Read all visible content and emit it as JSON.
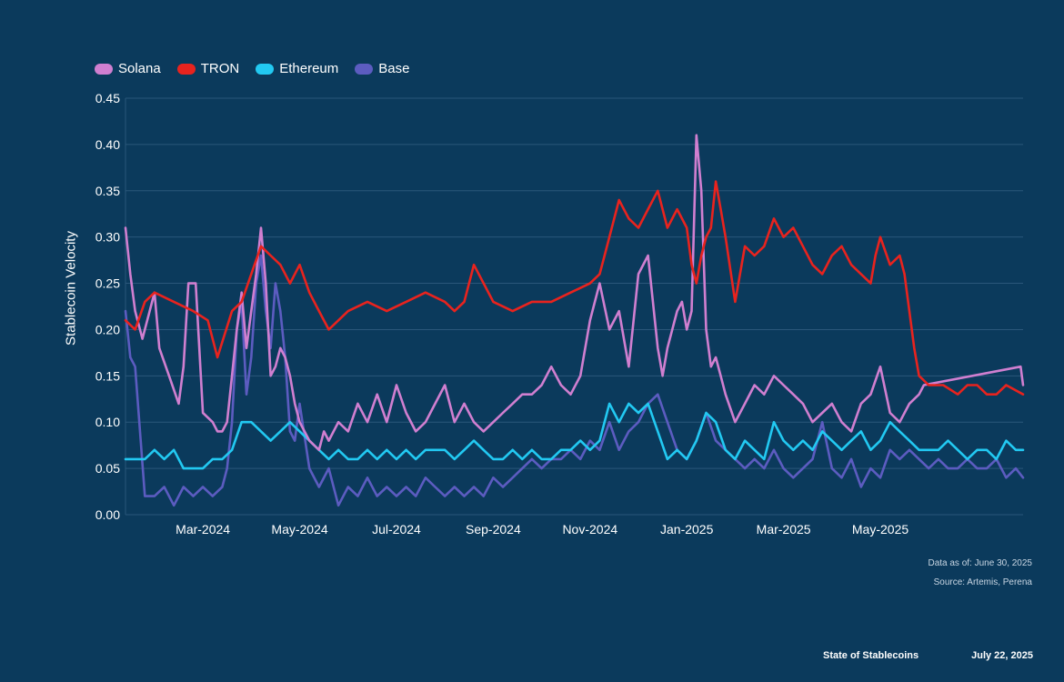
{
  "chart_data": {
    "type": "line",
    "title": "",
    "xlabel": "",
    "ylabel": "Stablecoin Velocity",
    "ylim": [
      0,
      0.45
    ],
    "yticks": [
      "0.00",
      "0.05",
      "0.10",
      "0.15",
      "0.20",
      "0.25",
      "0.30",
      "0.35",
      "0.40",
      "0.45"
    ],
    "xlim_month_index": [
      -0.6,
      17.95
    ],
    "xtick_labels": [
      "Mar-2024",
      "May-2024",
      "Jul-2024",
      "Sep-2024",
      "Nov-2024",
      "Jan-2025",
      "Mar-2025",
      "May-2025"
    ],
    "xtick_month_index": [
      1,
      3,
      5,
      7,
      9,
      11,
      13,
      15
    ],
    "legend_placement": "top-left",
    "series": [
      {
        "name": "Solana",
        "color": "#d07fd0",
        "x": [
          -0.6,
          -0.5,
          -0.4,
          -0.25,
          -0.1,
          0.0,
          0.1,
          0.3,
          0.5,
          0.6,
          0.7,
          0.85,
          1.0,
          1.2,
          1.3,
          1.4,
          1.5,
          1.6,
          1.7,
          1.8,
          1.9,
          2.0,
          2.1,
          2.2,
          2.3,
          2.4,
          2.5,
          2.6,
          2.7,
          2.8,
          2.9,
          3.0,
          3.2,
          3.4,
          3.5,
          3.6,
          3.8,
          4.0,
          4.2,
          4.4,
          4.6,
          4.8,
          5.0,
          5.2,
          5.4,
          5.6,
          5.8,
          6.0,
          6.2,
          6.4,
          6.6,
          6.8,
          7.0,
          7.2,
          7.4,
          7.6,
          7.8,
          8.0,
          8.2,
          8.4,
          8.6,
          8.8,
          9.0,
          9.2,
          9.4,
          9.6,
          9.8,
          10.0,
          10.2,
          10.4,
          10.5,
          10.6,
          10.8,
          10.9,
          11.0,
          11.1,
          11.2,
          11.3,
          11.4,
          11.5,
          11.6,
          11.7,
          11.8,
          12.0,
          12.2,
          12.4,
          12.6,
          12.8,
          13.0,
          13.2,
          13.4,
          13.6,
          13.8,
          14.0,
          14.2,
          14.4,
          14.6,
          14.8,
          15.0,
          15.2,
          15.4,
          15.6,
          15.8,
          15.9,
          17.9,
          17.95
        ],
        "values": [
          0.31,
          0.26,
          0.22,
          0.19,
          0.22,
          0.24,
          0.18,
          0.15,
          0.12,
          0.16,
          0.25,
          0.25,
          0.11,
          0.1,
          0.09,
          0.09,
          0.1,
          0.15,
          0.2,
          0.24,
          0.18,
          0.22,
          0.26,
          0.31,
          0.25,
          0.15,
          0.16,
          0.18,
          0.17,
          0.15,
          0.12,
          0.1,
          0.08,
          0.07,
          0.09,
          0.08,
          0.1,
          0.09,
          0.12,
          0.1,
          0.13,
          0.1,
          0.14,
          0.11,
          0.09,
          0.1,
          0.12,
          0.14,
          0.1,
          0.12,
          0.1,
          0.09,
          0.1,
          0.11,
          0.12,
          0.13,
          0.13,
          0.14,
          0.16,
          0.14,
          0.13,
          0.15,
          0.21,
          0.25,
          0.2,
          0.22,
          0.16,
          0.26,
          0.28,
          0.18,
          0.15,
          0.18,
          0.22,
          0.23,
          0.2,
          0.22,
          0.41,
          0.35,
          0.2,
          0.16,
          0.17,
          0.15,
          0.13,
          0.1,
          0.12,
          0.14,
          0.13,
          0.15,
          0.14,
          0.13,
          0.12,
          0.1,
          0.11,
          0.12,
          0.1,
          0.09,
          0.12,
          0.13,
          0.16,
          0.11,
          0.1,
          0.12,
          0.13,
          0.14,
          0.16,
          0.14
        ]
      },
      {
        "name": "TRON",
        "color": "#e8231e",
        "x": [
          -0.6,
          -0.4,
          -0.2,
          0.0,
          0.4,
          0.8,
          1.1,
          1.3,
          1.6,
          1.8,
          2.0,
          2.2,
          2.4,
          2.6,
          2.8,
          3.0,
          3.2,
          3.4,
          3.6,
          3.8,
          4.0,
          4.4,
          4.8,
          5.2,
          5.6,
          6.0,
          6.2,
          6.4,
          6.6,
          7.0,
          7.4,
          7.8,
          8.2,
          8.6,
          9.0,
          9.2,
          9.3,
          9.4,
          9.6,
          9.8,
          10.0,
          10.2,
          10.4,
          10.6,
          10.8,
          11.0,
          11.1,
          11.2,
          11.3,
          11.4,
          11.5,
          11.6,
          11.7,
          11.8,
          12.0,
          12.2,
          12.4,
          12.6,
          12.8,
          13.0,
          13.2,
          13.4,
          13.6,
          13.8,
          14.0,
          14.2,
          14.4,
          14.6,
          14.8,
          14.9,
          15.0,
          15.2,
          15.4,
          15.5,
          15.7,
          15.8,
          16.0,
          16.3,
          16.6,
          16.8,
          17.0,
          17.2,
          17.4,
          17.6,
          17.95
        ],
        "values": [
          0.21,
          0.2,
          0.23,
          0.24,
          0.23,
          0.22,
          0.21,
          0.17,
          0.22,
          0.23,
          0.26,
          0.29,
          0.28,
          0.27,
          0.25,
          0.27,
          0.24,
          0.22,
          0.2,
          0.21,
          0.22,
          0.23,
          0.22,
          0.23,
          0.24,
          0.23,
          0.22,
          0.23,
          0.27,
          0.23,
          0.22,
          0.23,
          0.23,
          0.24,
          0.25,
          0.26,
          0.28,
          0.3,
          0.34,
          0.32,
          0.31,
          0.33,
          0.35,
          0.31,
          0.33,
          0.31,
          0.27,
          0.25,
          0.28,
          0.3,
          0.31,
          0.36,
          0.33,
          0.3,
          0.23,
          0.29,
          0.28,
          0.29,
          0.32,
          0.3,
          0.31,
          0.29,
          0.27,
          0.26,
          0.28,
          0.29,
          0.27,
          0.26,
          0.25,
          0.28,
          0.3,
          0.27,
          0.28,
          0.26,
          0.18,
          0.15,
          0.14,
          0.14,
          0.13,
          0.14,
          0.14,
          0.13,
          0.13,
          0.14,
          0.13
        ]
      },
      {
        "name": "Ethereum",
        "color": "#22c9f2",
        "x": [
          -0.6,
          -0.2,
          0.0,
          0.2,
          0.4,
          0.6,
          0.8,
          1.0,
          1.2,
          1.3,
          1.4,
          1.6,
          1.8,
          2.0,
          2.2,
          2.4,
          2.6,
          2.8,
          3.0,
          3.2,
          3.4,
          3.6,
          3.8,
          4.0,
          4.2,
          4.4,
          4.6,
          4.8,
          5.0,
          5.2,
          5.4,
          5.6,
          5.8,
          6.0,
          6.2,
          6.4,
          6.6,
          6.8,
          7.0,
          7.2,
          7.4,
          7.6,
          7.8,
          8.0,
          8.2,
          8.4,
          8.6,
          8.8,
          9.0,
          9.2,
          9.4,
          9.6,
          9.8,
          10.0,
          10.2,
          10.4,
          10.6,
          10.8,
          11.0,
          11.2,
          11.4,
          11.6,
          11.8,
          12.0,
          12.2,
          12.4,
          12.6,
          12.8,
          13.0,
          13.2,
          13.4,
          13.6,
          13.8,
          14.0,
          14.2,
          14.4,
          14.6,
          14.8,
          15.0,
          15.2,
          15.4,
          15.6,
          15.8,
          16.0,
          16.2,
          16.4,
          16.6,
          16.8,
          17.0,
          17.2,
          17.4,
          17.6,
          17.8,
          17.95
        ],
        "values": [
          0.06,
          0.06,
          0.07,
          0.06,
          0.07,
          0.05,
          0.05,
          0.05,
          0.06,
          0.06,
          0.06,
          0.07,
          0.1,
          0.1,
          0.09,
          0.08,
          0.09,
          0.1,
          0.09,
          0.08,
          0.07,
          0.06,
          0.07,
          0.06,
          0.06,
          0.07,
          0.06,
          0.07,
          0.06,
          0.07,
          0.06,
          0.07,
          0.07,
          0.07,
          0.06,
          0.07,
          0.08,
          0.07,
          0.06,
          0.06,
          0.07,
          0.06,
          0.07,
          0.06,
          0.06,
          0.07,
          0.07,
          0.08,
          0.07,
          0.08,
          0.12,
          0.1,
          0.12,
          0.11,
          0.12,
          0.09,
          0.06,
          0.07,
          0.06,
          0.08,
          0.11,
          0.1,
          0.07,
          0.06,
          0.08,
          0.07,
          0.06,
          0.1,
          0.08,
          0.07,
          0.08,
          0.07,
          0.09,
          0.08,
          0.07,
          0.08,
          0.09,
          0.07,
          0.08,
          0.1,
          0.09,
          0.08,
          0.07,
          0.07,
          0.07,
          0.08,
          0.07,
          0.06,
          0.07,
          0.07,
          0.06,
          0.08,
          0.07,
          0.07
        ]
      },
      {
        "name": "Base",
        "color": "#5c5cc0",
        "x": [
          -0.6,
          -0.5,
          -0.4,
          -0.2,
          -0.1,
          0.0,
          0.2,
          0.4,
          0.6,
          0.8,
          1.0,
          1.2,
          1.4,
          1.5,
          1.6,
          1.7,
          1.8,
          1.9,
          2.0,
          2.1,
          2.2,
          2.3,
          2.4,
          2.5,
          2.6,
          2.7,
          2.8,
          2.9,
          3.0,
          3.2,
          3.4,
          3.6,
          3.8,
          4.0,
          4.2,
          4.4,
          4.6,
          4.8,
          5.0,
          5.2,
          5.4,
          5.6,
          5.8,
          6.0,
          6.2,
          6.4,
          6.6,
          6.8,
          7.0,
          7.2,
          7.4,
          7.6,
          7.8,
          8.0,
          8.2,
          8.4,
          8.6,
          8.8,
          9.0,
          9.2,
          9.4,
          9.6,
          9.8,
          10.0,
          10.2,
          10.4,
          10.6,
          10.8,
          11.0,
          11.2,
          11.4,
          11.6,
          11.8,
          12.0,
          12.2,
          12.4,
          12.6,
          12.8,
          13.0,
          13.2,
          13.4,
          13.6,
          13.8,
          14.0,
          14.2,
          14.4,
          14.6,
          14.8,
          15.0,
          15.2,
          15.4,
          15.6,
          15.8,
          16.0,
          16.2,
          16.4,
          16.6,
          16.8,
          17.0,
          17.2,
          17.4,
          17.6,
          17.8,
          17.95
        ],
        "values": [
          0.22,
          0.17,
          0.16,
          0.02,
          0.02,
          0.02,
          0.03,
          0.01,
          0.03,
          0.02,
          0.03,
          0.02,
          0.03,
          0.05,
          0.1,
          0.2,
          0.23,
          0.13,
          0.17,
          0.25,
          0.28,
          0.22,
          0.18,
          0.25,
          0.22,
          0.17,
          0.09,
          0.08,
          0.12,
          0.05,
          0.03,
          0.05,
          0.01,
          0.03,
          0.02,
          0.04,
          0.02,
          0.03,
          0.02,
          0.03,
          0.02,
          0.04,
          0.03,
          0.02,
          0.03,
          0.02,
          0.03,
          0.02,
          0.04,
          0.03,
          0.04,
          0.05,
          0.06,
          0.05,
          0.06,
          0.06,
          0.07,
          0.06,
          0.08,
          0.07,
          0.1,
          0.07,
          0.09,
          0.1,
          0.12,
          0.13,
          0.1,
          0.07,
          0.06,
          0.08,
          0.11,
          0.08,
          0.07,
          0.06,
          0.05,
          0.06,
          0.05,
          0.07,
          0.05,
          0.04,
          0.05,
          0.06,
          0.1,
          0.05,
          0.04,
          0.06,
          0.03,
          0.05,
          0.04,
          0.07,
          0.06,
          0.07,
          0.06,
          0.05,
          0.06,
          0.05,
          0.05,
          0.06,
          0.05,
          0.05,
          0.06,
          0.04,
          0.05,
          0.04
        ]
      }
    ]
  },
  "notes": {
    "data_as_of": "Data as of: June 30, 2025",
    "source": "Source: Artemis, Perena"
  },
  "footer": {
    "report": "State of Stablecoins",
    "date": "July 22, 2025"
  }
}
